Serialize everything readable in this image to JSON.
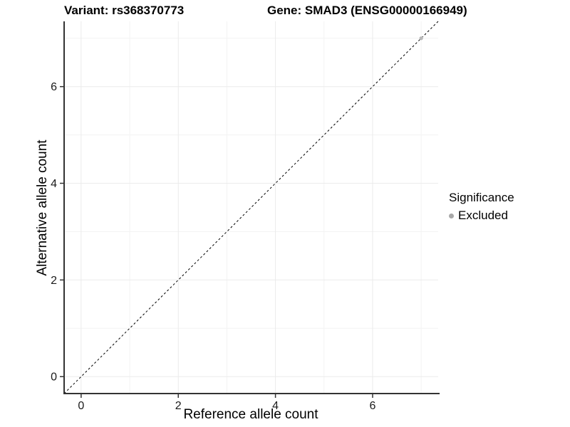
{
  "figure": {
    "title_variant": "Variant: rs368370773",
    "title_gene": "Gene: SMAD3 (ENSG00000166949)"
  },
  "chart_data": {
    "type": "scatter",
    "title": "Variant: rs368370773    Gene: SMAD3 (ENSG00000166949)",
    "xlabel": "Reference allele count",
    "ylabel": "Alternative allele count",
    "xlim": [
      -0.35,
      7.35
    ],
    "ylim": [
      -0.35,
      7.35
    ],
    "xticks": [
      0,
      2,
      4,
      6
    ],
    "yticks": [
      0,
      2,
      4,
      6
    ],
    "xminor": [
      1,
      3,
      5,
      7
    ],
    "yminor": [
      1,
      3,
      5,
      7
    ],
    "grid": "major and minor gridlines, light gray on white",
    "reference_line": {
      "type": "identity y=x",
      "style": "dashed",
      "color": "#000000"
    },
    "series": [
      {
        "name": "Excluded",
        "color": "#b8b8b8",
        "points": [
          {
            "x": 7,
            "y": 7
          }
        ]
      }
    ],
    "legend": {
      "title": "Significance",
      "position": "right",
      "items": [
        {
          "label": "Excluded",
          "color": "#a8a8a8"
        }
      ]
    }
  },
  "colors": {
    "background": "#ffffff",
    "grid_major": "#ebebeb",
    "grid_minor": "#f3f3f3",
    "axis_line": "#333333",
    "tick_mark": "#333333",
    "tick_text": "#1a1a1a",
    "identity_line": "#000000",
    "point": "#b8b8b8"
  }
}
